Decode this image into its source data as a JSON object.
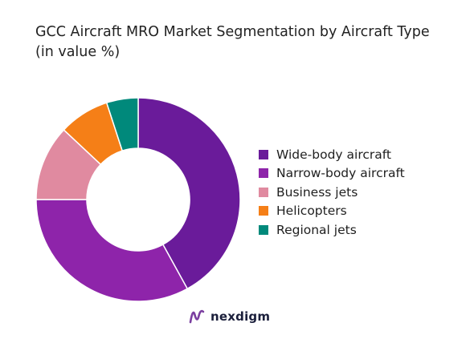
{
  "chart_data": {
    "type": "pie",
    "variant": "donut",
    "title": "GCC Aircraft MRO Market Segmentation by Aircraft Type (in value %)",
    "categories": [
      "Wide-body aircraft",
      "Narrow-body aircraft",
      "Business jets",
      "Helicopters",
      "Regional jets"
    ],
    "values": [
      42,
      33,
      12,
      8,
      5
    ],
    "colors": [
      "#6a1b9a",
      "#8e24aa",
      "#e08aa0",
      "#f57f17",
      "#00897b"
    ],
    "legend_position": "right",
    "start_angle": "top",
    "direction": "clockwise"
  },
  "brand": {
    "name": "nexdigm",
    "icon": "nexdigm-logo-icon",
    "color": "#1b1f3b",
    "icon_color": "#7b3fa0"
  }
}
